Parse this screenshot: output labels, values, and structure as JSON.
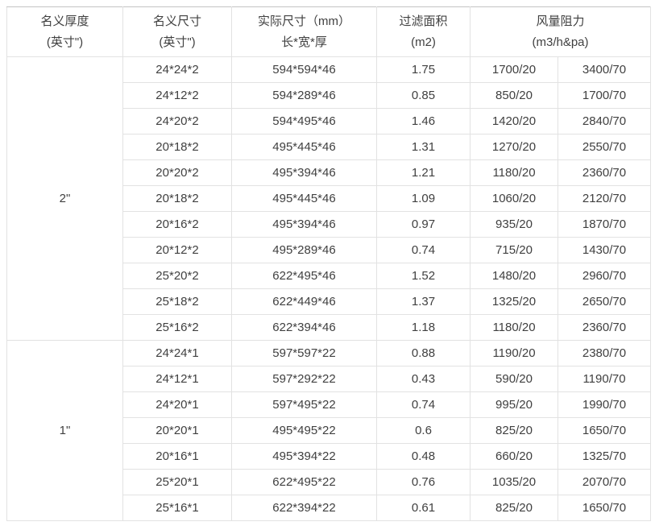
{
  "table": {
    "headers": [
      {
        "line1": "名义厚度",
        "line2": "(英寸\")"
      },
      {
        "line1": "名义尺寸",
        "line2": "(英寸\")"
      },
      {
        "line1": "实际尺寸（mm）",
        "line2": "长*宽*厚"
      },
      {
        "line1": "过滤面积",
        "line2": "(m2)"
      },
      {
        "line1": "风量阻力",
        "line2": "(m3/h&pa)"
      }
    ],
    "sections": [
      {
        "thickness": "2\"",
        "rows": [
          [
            "24*24*2",
            "594*594*46",
            "1.75",
            "1700/20",
            "3400/70"
          ],
          [
            "24*12*2",
            "594*289*46",
            "0.85",
            "850/20",
            "1700/70"
          ],
          [
            "24*20*2",
            "594*495*46",
            "1.46",
            "1420/20",
            "2840/70"
          ],
          [
            "20*18*2",
            "495*445*46",
            "1.31",
            "1270/20",
            "2550/70"
          ],
          [
            "20*20*2",
            "495*394*46",
            "1.21",
            "1180/20",
            "2360/70"
          ],
          [
            "20*18*2",
            "495*445*46",
            "1.09",
            "1060/20",
            "2120/70"
          ],
          [
            "20*16*2",
            "495*394*46",
            "0.97",
            "935/20",
            "1870/70"
          ],
          [
            "20*12*2",
            "495*289*46",
            "0.74",
            "715/20",
            "1430/70"
          ],
          [
            "25*20*2",
            "622*495*46",
            "1.52",
            "1480/20",
            "2960/70"
          ],
          [
            "25*18*2",
            "622*449*46",
            "1.37",
            "1325/20",
            "2650/70"
          ],
          [
            "25*16*2",
            "622*394*46",
            "1.18",
            "1180/20",
            "2360/70"
          ]
        ]
      },
      {
        "thickness": "1\"",
        "rows": [
          [
            "24*24*1",
            "597*597*22",
            "0.88",
            "1190/20",
            "2380/70"
          ],
          [
            "24*12*1",
            "597*292*22",
            "0.43",
            "590/20",
            "1190/70"
          ],
          [
            "24*20*1",
            "597*495*22",
            "0.74",
            "995/20",
            "1990/70"
          ],
          [
            "20*20*1",
            "495*495*22",
            "0.6",
            "825/20",
            "1650/70"
          ],
          [
            "20*16*1",
            "495*394*22",
            "0.48",
            "660/20",
            "1325/70"
          ],
          [
            "25*20*1",
            "622*495*22",
            "0.76",
            "1035/20",
            "2070/70"
          ],
          [
            "25*16*1",
            "622*394*22",
            "0.61",
            "825/20",
            "1650/70"
          ]
        ]
      }
    ],
    "colors": {
      "border_inner": "#e2e2e2",
      "border_top": "#c3c3c3",
      "text": "#404040",
      "background": "#ffffff"
    }
  }
}
